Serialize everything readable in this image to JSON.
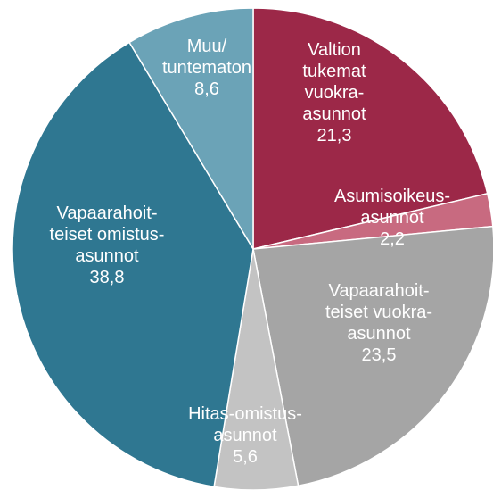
{
  "chart_data": {
    "type": "pie",
    "categories": [
      "Valtion\ntukemat\nvuokra-\nasunnot",
      "Asumisoikeus-\nasunnot",
      "Vapaarahoit-\nteiset vuokra-\nasunnot",
      "Hitas-omistus-\nasunnot",
      "Vapaarahoit-\nteiset omistus-\nasunnot",
      "Muu/\ntuntematon"
    ],
    "values": [
      21.3,
      2.2,
      23.5,
      5.6,
      38.8,
      8.6
    ],
    "value_labels": [
      "21,3",
      "2,2",
      "23,5",
      "5,6",
      "38,8",
      "8,6"
    ],
    "colors": [
      "#9c2848",
      "#c86a80",
      "#a5a5a5",
      "#c3c3c3",
      "#2f7791",
      "#6ba3b7"
    ]
  }
}
